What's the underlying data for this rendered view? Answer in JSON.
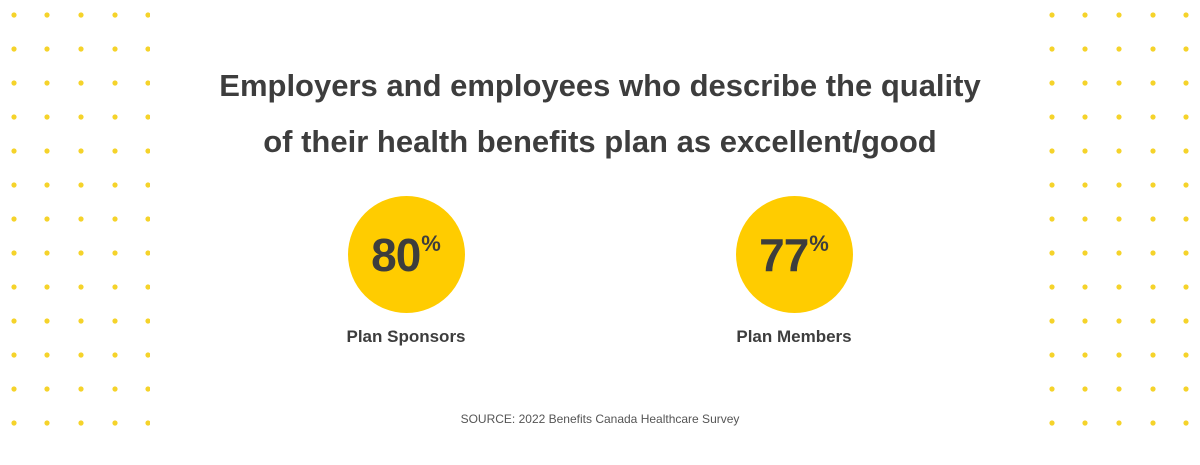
{
  "chart_data": {
    "type": "stat",
    "title": "Employers and employees who describe the quality of their health benefits plan as excellent/good",
    "title_lines": [
      "Employers and employees who describe the quality",
      "of their health benefits plan as excellent/good"
    ],
    "unit": "%",
    "items": [
      {
        "label": "Plan Sponsors",
        "value": 80
      },
      {
        "label": "Plan Members",
        "value": 77
      }
    ],
    "source": "SOURCE: 2022 Benefits Canada Healthcare Survey"
  },
  "colors": {
    "accent": "#ffcc00",
    "dot": "#f5d32a",
    "text": "#3d3d3d"
  }
}
